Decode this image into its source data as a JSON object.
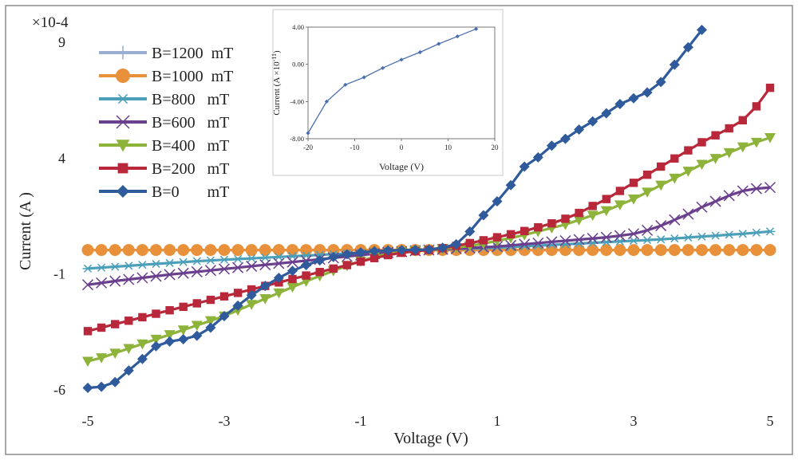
{
  "chart_data": [
    {
      "type": "line",
      "title": "",
      "xlabel": "Voltage (V)",
      "ylabel": "Current (A )",
      "scale_note": "×10-4",
      "xlim": [
        -5,
        5
      ],
      "ylim": [
        -6,
        9
      ],
      "xticks": [
        -5,
        -3,
        -1,
        1,
        3,
        5
      ],
      "yticks": [
        9,
        4,
        -1,
        -6
      ],
      "grid": false,
      "legend_position": "top-left",
      "series": [
        {
          "name": "B=1200  mT",
          "marker": "plus",
          "color": "#9aaed4",
          "x": [
            -5,
            -4.8,
            -4.6,
            -4.4,
            -4.2,
            -4.0,
            -3.8,
            -3.6,
            -3.4,
            -3.2,
            -3.0,
            -2.8,
            -2.6,
            -2.4,
            -2.2,
            -2.0,
            -1.8,
            -1.6,
            -1.4,
            -1.2,
            -1.0,
            -0.8,
            -0.6,
            -0.4,
            -0.2,
            0.0,
            0.2,
            0.4,
            0.6,
            0.8,
            1.0,
            1.2,
            1.4,
            1.6,
            1.8,
            2.0,
            2.2,
            2.4,
            2.6,
            2.8,
            3.0,
            3.2,
            3.4,
            3.6,
            3.8,
            4.0,
            4.2,
            4.4,
            4.6,
            4.8,
            5.0
          ],
          "y": [
            0,
            0,
            0,
            0,
            0,
            0,
            0,
            0,
            0,
            0,
            0,
            0,
            0,
            0,
            0,
            0,
            0,
            0,
            0,
            0,
            0,
            0,
            0,
            0,
            0,
            0,
            0,
            0,
            0,
            0,
            0,
            0,
            0,
            0,
            0,
            0,
            0,
            0,
            0,
            0,
            0,
            0,
            0,
            0,
            0,
            0,
            0,
            0,
            0,
            0,
            0
          ]
        },
        {
          "name": "B=1000  mT",
          "marker": "circle",
          "color": "#e8913a",
          "x": [
            -5,
            -4.8,
            -4.6,
            -4.4,
            -4.2,
            -4.0,
            -3.8,
            -3.6,
            -3.4,
            -3.2,
            -3.0,
            -2.8,
            -2.6,
            -2.4,
            -2.2,
            -2.0,
            -1.8,
            -1.6,
            -1.4,
            -1.2,
            -1.0,
            -0.8,
            -0.6,
            -0.4,
            -0.2,
            0.0,
            0.2,
            0.4,
            0.6,
            0.8,
            1.0,
            1.2,
            1.4,
            1.6,
            1.8,
            2.0,
            2.2,
            2.4,
            2.6,
            2.8,
            3.0,
            3.2,
            3.4,
            3.6,
            3.8,
            4.0,
            4.2,
            4.4,
            4.6,
            4.8,
            5.0
          ],
          "y": [
            0,
            0,
            0,
            0,
            0,
            0,
            0,
            0,
            0,
            0,
            0,
            0,
            0,
            0,
            0,
            0,
            0,
            0,
            0,
            0,
            0,
            0,
            0,
            0,
            0,
            0,
            0,
            0,
            0,
            0,
            0,
            0,
            0,
            0,
            0,
            0,
            0,
            0,
            0,
            0,
            0,
            0,
            0,
            0,
            0,
            0,
            0,
            0,
            0,
            0,
            0
          ]
        },
        {
          "name": "B=800   mT",
          "marker": "asterisk",
          "color": "#4b9fb8",
          "x": [
            -5,
            -4.8,
            -4.6,
            -4.4,
            -4.2,
            -4.0,
            -3.8,
            -3.6,
            -3.4,
            -3.2,
            -3.0,
            -2.8,
            -2.6,
            -2.4,
            -2.2,
            -2.0,
            -1.8,
            -1.6,
            -1.4,
            -1.2,
            -1.0,
            -0.8,
            -0.6,
            -0.4,
            -0.2,
            0.0,
            0.2,
            0.4,
            0.6,
            0.8,
            1.0,
            1.2,
            1.4,
            1.6,
            1.8,
            2.0,
            2.2,
            2.4,
            2.6,
            2.8,
            3.0,
            3.2,
            3.4,
            3.6,
            3.8,
            4.0,
            4.2,
            4.4,
            4.6,
            4.8,
            5.0
          ],
          "y": [
            -0.8,
            -0.76,
            -0.72,
            -0.68,
            -0.64,
            -0.6,
            -0.56,
            -0.52,
            -0.48,
            -0.45,
            -0.42,
            -0.39,
            -0.36,
            -0.33,
            -0.3,
            -0.27,
            -0.24,
            -0.21,
            -0.18,
            -0.15,
            -0.12,
            -0.09,
            -0.06,
            -0.04,
            -0.02,
            0.0,
            0.02,
            0.04,
            0.06,
            0.08,
            0.1,
            0.13,
            0.16,
            0.19,
            0.22,
            0.25,
            0.28,
            0.31,
            0.34,
            0.37,
            0.4,
            0.43,
            0.46,
            0.5,
            0.54,
            0.58,
            0.62,
            0.66,
            0.7,
            0.75,
            0.8
          ]
        },
        {
          "name": "B=600   mT",
          "marker": "x",
          "color": "#6a3f8e",
          "x": [
            -5,
            -4.8,
            -4.6,
            -4.4,
            -4.2,
            -4.0,
            -3.8,
            -3.6,
            -3.4,
            -3.2,
            -3.0,
            -2.8,
            -2.6,
            -2.4,
            -2.2,
            -2.0,
            -1.8,
            -1.6,
            -1.4,
            -1.2,
            -1.0,
            -0.8,
            -0.6,
            -0.4,
            -0.2,
            0.0,
            0.2,
            0.4,
            0.6,
            0.8,
            1.0,
            1.2,
            1.4,
            1.6,
            1.8,
            2.0,
            2.2,
            2.4,
            2.6,
            2.8,
            3.0,
            3.2,
            3.4,
            3.6,
            3.8,
            4.0,
            4.2,
            4.4,
            4.6,
            4.8,
            5.0
          ],
          "y": [
            -1.5,
            -1.42,
            -1.34,
            -1.27,
            -1.2,
            -1.13,
            -1.06,
            -1.0,
            -0.94,
            -0.88,
            -0.82,
            -0.76,
            -0.7,
            -0.64,
            -0.58,
            -0.52,
            -0.46,
            -0.4,
            -0.34,
            -0.28,
            -0.22,
            -0.16,
            -0.11,
            -0.07,
            -0.03,
            0.0,
            0.03,
            0.06,
            0.09,
            0.12,
            0.15,
            0.2,
            0.25,
            0.3,
            0.35,
            0.4,
            0.45,
            0.5,
            0.55,
            0.62,
            0.7,
            0.85,
            1.05,
            1.3,
            1.55,
            1.85,
            2.1,
            2.35,
            2.55,
            2.65,
            2.7
          ]
        },
        {
          "name": "B=400   mT",
          "marker": "triangle-down",
          "color": "#8db33a",
          "x": [
            -5,
            -4.8,
            -4.6,
            -4.4,
            -4.2,
            -4.0,
            -3.8,
            -3.6,
            -3.4,
            -3.2,
            -3.0,
            -2.8,
            -2.6,
            -2.4,
            -2.2,
            -2.0,
            -1.8,
            -1.6,
            -1.4,
            -1.2,
            -1.0,
            -0.8,
            -0.6,
            -0.4,
            -0.2,
            0.0,
            0.2,
            0.4,
            0.6,
            0.8,
            1.0,
            1.2,
            1.4,
            1.6,
            1.8,
            2.0,
            2.2,
            2.4,
            2.6,
            2.8,
            3.0,
            3.2,
            3.4,
            3.6,
            3.8,
            4.0,
            4.2,
            4.4,
            4.6,
            4.8,
            5.0
          ],
          "y": [
            -4.8,
            -4.65,
            -4.45,
            -4.25,
            -4.05,
            -3.85,
            -3.65,
            -3.45,
            -3.25,
            -3.05,
            -2.85,
            -2.6,
            -2.35,
            -2.1,
            -1.85,
            -1.6,
            -1.35,
            -1.12,
            -0.9,
            -0.68,
            -0.48,
            -0.3,
            -0.16,
            -0.08,
            -0.03,
            0.0,
            0.05,
            0.1,
            0.18,
            0.28,
            0.4,
            0.52,
            0.65,
            0.8,
            0.95,
            1.1,
            1.3,
            1.5,
            1.7,
            1.95,
            2.2,
            2.5,
            2.8,
            3.1,
            3.4,
            3.7,
            3.95,
            4.2,
            4.45,
            4.65,
            4.85
          ]
        },
        {
          "name": "B=200   mT",
          "marker": "square",
          "color": "#b8283a",
          "x": [
            -5,
            -4.8,
            -4.6,
            -4.4,
            -4.2,
            -4.0,
            -3.8,
            -3.6,
            -3.4,
            -3.2,
            -3.0,
            -2.8,
            -2.6,
            -2.4,
            -2.2,
            -2.0,
            -1.8,
            -1.6,
            -1.4,
            -1.2,
            -1.0,
            -0.8,
            -0.6,
            -0.4,
            -0.2,
            0.0,
            0.2,
            0.4,
            0.6,
            0.8,
            1.0,
            1.2,
            1.4,
            1.6,
            1.8,
            2.0,
            2.2,
            2.4,
            2.6,
            2.8,
            3.0,
            3.2,
            3.4,
            3.6,
            3.8,
            4.0,
            4.2,
            4.4,
            4.6,
            4.8,
            5.0
          ],
          "y": [
            -3.5,
            -3.35,
            -3.2,
            -3.05,
            -2.9,
            -2.75,
            -2.6,
            -2.45,
            -2.3,
            -2.15,
            -2.0,
            -1.85,
            -1.7,
            -1.55,
            -1.4,
            -1.25,
            -1.1,
            -0.95,
            -0.8,
            -0.65,
            -0.5,
            -0.35,
            -0.22,
            -0.12,
            -0.05,
            0.0,
            0.08,
            0.18,
            0.3,
            0.42,
            0.55,
            0.68,
            0.82,
            0.98,
            1.15,
            1.35,
            1.6,
            1.9,
            2.2,
            2.55,
            2.9,
            3.25,
            3.6,
            3.95,
            4.3,
            4.65,
            4.95,
            5.25,
            5.6,
            6.2,
            7.0
          ]
        },
        {
          "name": "B=0       mT",
          "marker": "diamond",
          "color": "#2f5b9c",
          "x": [
            -5,
            -4.8,
            -4.6,
            -4.4,
            -4.2,
            -4.0,
            -3.8,
            -3.6,
            -3.4,
            -3.2,
            -3.0,
            -2.8,
            -2.6,
            -2.4,
            -2.2,
            -2.0,
            -1.8,
            -1.6,
            -1.4,
            -1.2,
            -1.0,
            -0.8,
            -0.6,
            -0.4,
            -0.2,
            0.0,
            0.2,
            0.4,
            0.6,
            0.8,
            1.0,
            1.2,
            1.4,
            1.6,
            1.8,
            2.0,
            2.2,
            2.4,
            2.6,
            2.8,
            3.0,
            3.2,
            3.4,
            3.6,
            3.8,
            4.0
          ],
          "y": [
            -5.95,
            -5.9,
            -5.7,
            -5.2,
            -4.7,
            -4.15,
            -3.95,
            -3.85,
            -3.7,
            -3.35,
            -2.85,
            -2.4,
            -1.95,
            -1.55,
            -1.2,
            -0.9,
            -0.65,
            -0.45,
            -0.3,
            -0.18,
            -0.1,
            -0.05,
            -0.02,
            0.0,
            0.01,
            0.02,
            0.1,
            0.25,
            0.8,
            1.5,
            2.1,
            2.8,
            3.6,
            4.0,
            4.5,
            4.8,
            5.2,
            5.55,
            5.9,
            6.3,
            6.55,
            6.8,
            7.25,
            8.0,
            8.75,
            9.5
          ]
        }
      ]
    },
    {
      "type": "line",
      "title": "",
      "xlabel": "Voltage (V)",
      "ylabel": "Current (A ×10",
      "ylabel_exponent": "-11",
      "ylabel_close": ")",
      "xlim": [
        -20,
        20
      ],
      "ylim": [
        -8,
        4
      ],
      "xticks": [
        "-20",
        "-10",
        "0",
        "10",
        "20"
      ],
      "yticks": [
        "4.00",
        "0.00",
        "-4.00",
        "-8.00"
      ],
      "grid": false,
      "series": [
        {
          "name": "inset",
          "marker": "diamond",
          "color": "#4a6fb0",
          "x": [
            -20,
            -16,
            -12,
            -8,
            -4,
            0,
            4,
            8,
            12,
            16
          ],
          "y": [
            -7.4,
            -4.0,
            -2.2,
            -1.4,
            -0.4,
            0.5,
            1.3,
            2.2,
            3.0,
            3.8
          ]
        }
      ]
    }
  ]
}
